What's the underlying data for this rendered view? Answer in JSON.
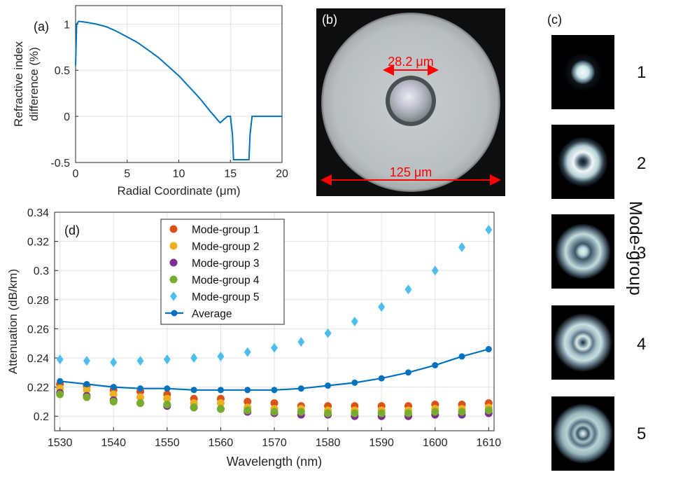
{
  "panel_a": {
    "label": "(a)",
    "chart_data": {
      "type": "line",
      "xlabel": "Radial Coordinate (μm)",
      "ylabel_line1": "Refractive index",
      "ylabel_line2": "difference (%)",
      "xlim": [
        0,
        20
      ],
      "ylim": [
        -0.5,
        1.2
      ],
      "xticks": [
        0,
        5,
        10,
        15,
        20
      ],
      "yticks": [
        -0.5,
        0,
        0.5,
        1
      ],
      "ytick_labels": [
        "-0.5",
        "0",
        "0.5",
        "1"
      ],
      "grid": true,
      "series": [
        {
          "color": "#0072BD",
          "x": [
            0,
            0.1,
            0.3,
            1,
            2,
            3,
            4,
            5,
            6,
            7,
            8,
            9,
            10,
            11,
            12,
            13,
            14,
            14.5,
            14.7,
            15,
            15.2,
            15.3,
            16.8,
            16.9,
            17.1,
            20
          ],
          "y": [
            0.55,
            1.0,
            1.03,
            1.02,
            1.0,
            0.97,
            0.92,
            0.86,
            0.8,
            0.72,
            0.64,
            0.54,
            0.44,
            0.32,
            0.2,
            0.06,
            -0.07,
            -0.02,
            0.0,
            0.0,
            -0.2,
            -0.47,
            -0.47,
            -0.2,
            0.0,
            0.0
          ]
        }
      ]
    }
  },
  "panel_b": {
    "label": "(b)",
    "core_label": "28.2 μm",
    "cladding_label": "125 μm",
    "annotation_color": "#ff0000"
  },
  "panel_c": {
    "label": "(c)",
    "side_label": "Mode-group",
    "modes": [
      {
        "num": "1"
      },
      {
        "num": "2"
      },
      {
        "num": "3"
      },
      {
        "num": "4"
      },
      {
        "num": "5"
      }
    ]
  },
  "panel_d": {
    "label": "(d)",
    "chart_data": {
      "type": "scatter",
      "xlabel": "Wavelength (nm)",
      "ylabel": "Attenuation (dB/km)",
      "xlim": [
        1529,
        1611
      ],
      "ylim": [
        0.19,
        0.34
      ],
      "xticks": [
        1530,
        1540,
        1550,
        1560,
        1570,
        1580,
        1590,
        1600,
        1610
      ],
      "yticks": [
        0.2,
        0.22,
        0.24,
        0.26,
        0.28,
        0.3,
        0.32,
        0.34
      ],
      "ytick_labels": [
        "0.2",
        "0.22",
        "0.24",
        "0.26",
        "0.28",
        "0.3",
        "0.32",
        "0.34"
      ],
      "grid": true,
      "legend_position": "top-center",
      "x": [
        1530,
        1535,
        1540,
        1545,
        1550,
        1555,
        1560,
        1565,
        1570,
        1575,
        1580,
        1585,
        1590,
        1595,
        1600,
        1605,
        1610
      ],
      "series": [
        {
          "name": "Mode-group 1",
          "marker": "circle",
          "color": "#D95319",
          "values": [
            0.222,
            0.221,
            0.218,
            0.217,
            0.215,
            0.212,
            0.212,
            0.21,
            0.209,
            0.207,
            0.207,
            0.207,
            0.207,
            0.207,
            0.208,
            0.208,
            0.209
          ]
        },
        {
          "name": "Mode-group 2",
          "marker": "circle",
          "color": "#EDB120",
          "values": [
            0.219,
            0.218,
            0.215,
            0.213,
            0.212,
            0.209,
            0.209,
            0.206,
            0.205,
            0.205,
            0.204,
            0.204,
            0.204,
            0.204,
            0.205,
            0.205,
            0.206
          ]
        },
        {
          "name": "Mode-group 3",
          "marker": "circle",
          "color": "#7E2F8E",
          "values": [
            0.216,
            0.214,
            0.211,
            0.209,
            0.207,
            0.206,
            0.205,
            0.203,
            0.202,
            0.201,
            0.201,
            0.2,
            0.2,
            0.2,
            0.201,
            0.201,
            0.202
          ]
        },
        {
          "name": "Mode-group 4",
          "marker": "circle",
          "color": "#77AC30",
          "values": [
            0.215,
            0.213,
            0.21,
            0.209,
            0.208,
            0.206,
            0.205,
            0.204,
            0.203,
            0.203,
            0.202,
            0.202,
            0.202,
            0.202,
            0.203,
            0.203,
            0.204
          ]
        },
        {
          "name": "Mode-group 5",
          "marker": "diamond",
          "color": "#4DBEEE",
          "values": [
            0.239,
            0.238,
            0.237,
            0.238,
            0.239,
            0.24,
            0.241,
            0.244,
            0.247,
            0.251,
            0.257,
            0.265,
            0.275,
            0.287,
            0.3,
            0.316,
            0.328
          ]
        },
        {
          "name": "Average",
          "marker": "line-circle",
          "color": "#0072BD",
          "values": [
            0.224,
            0.222,
            0.22,
            0.219,
            0.219,
            0.218,
            0.218,
            0.218,
            0.218,
            0.219,
            0.221,
            0.223,
            0.226,
            0.23,
            0.235,
            0.241,
            0.246
          ]
        }
      ]
    }
  }
}
